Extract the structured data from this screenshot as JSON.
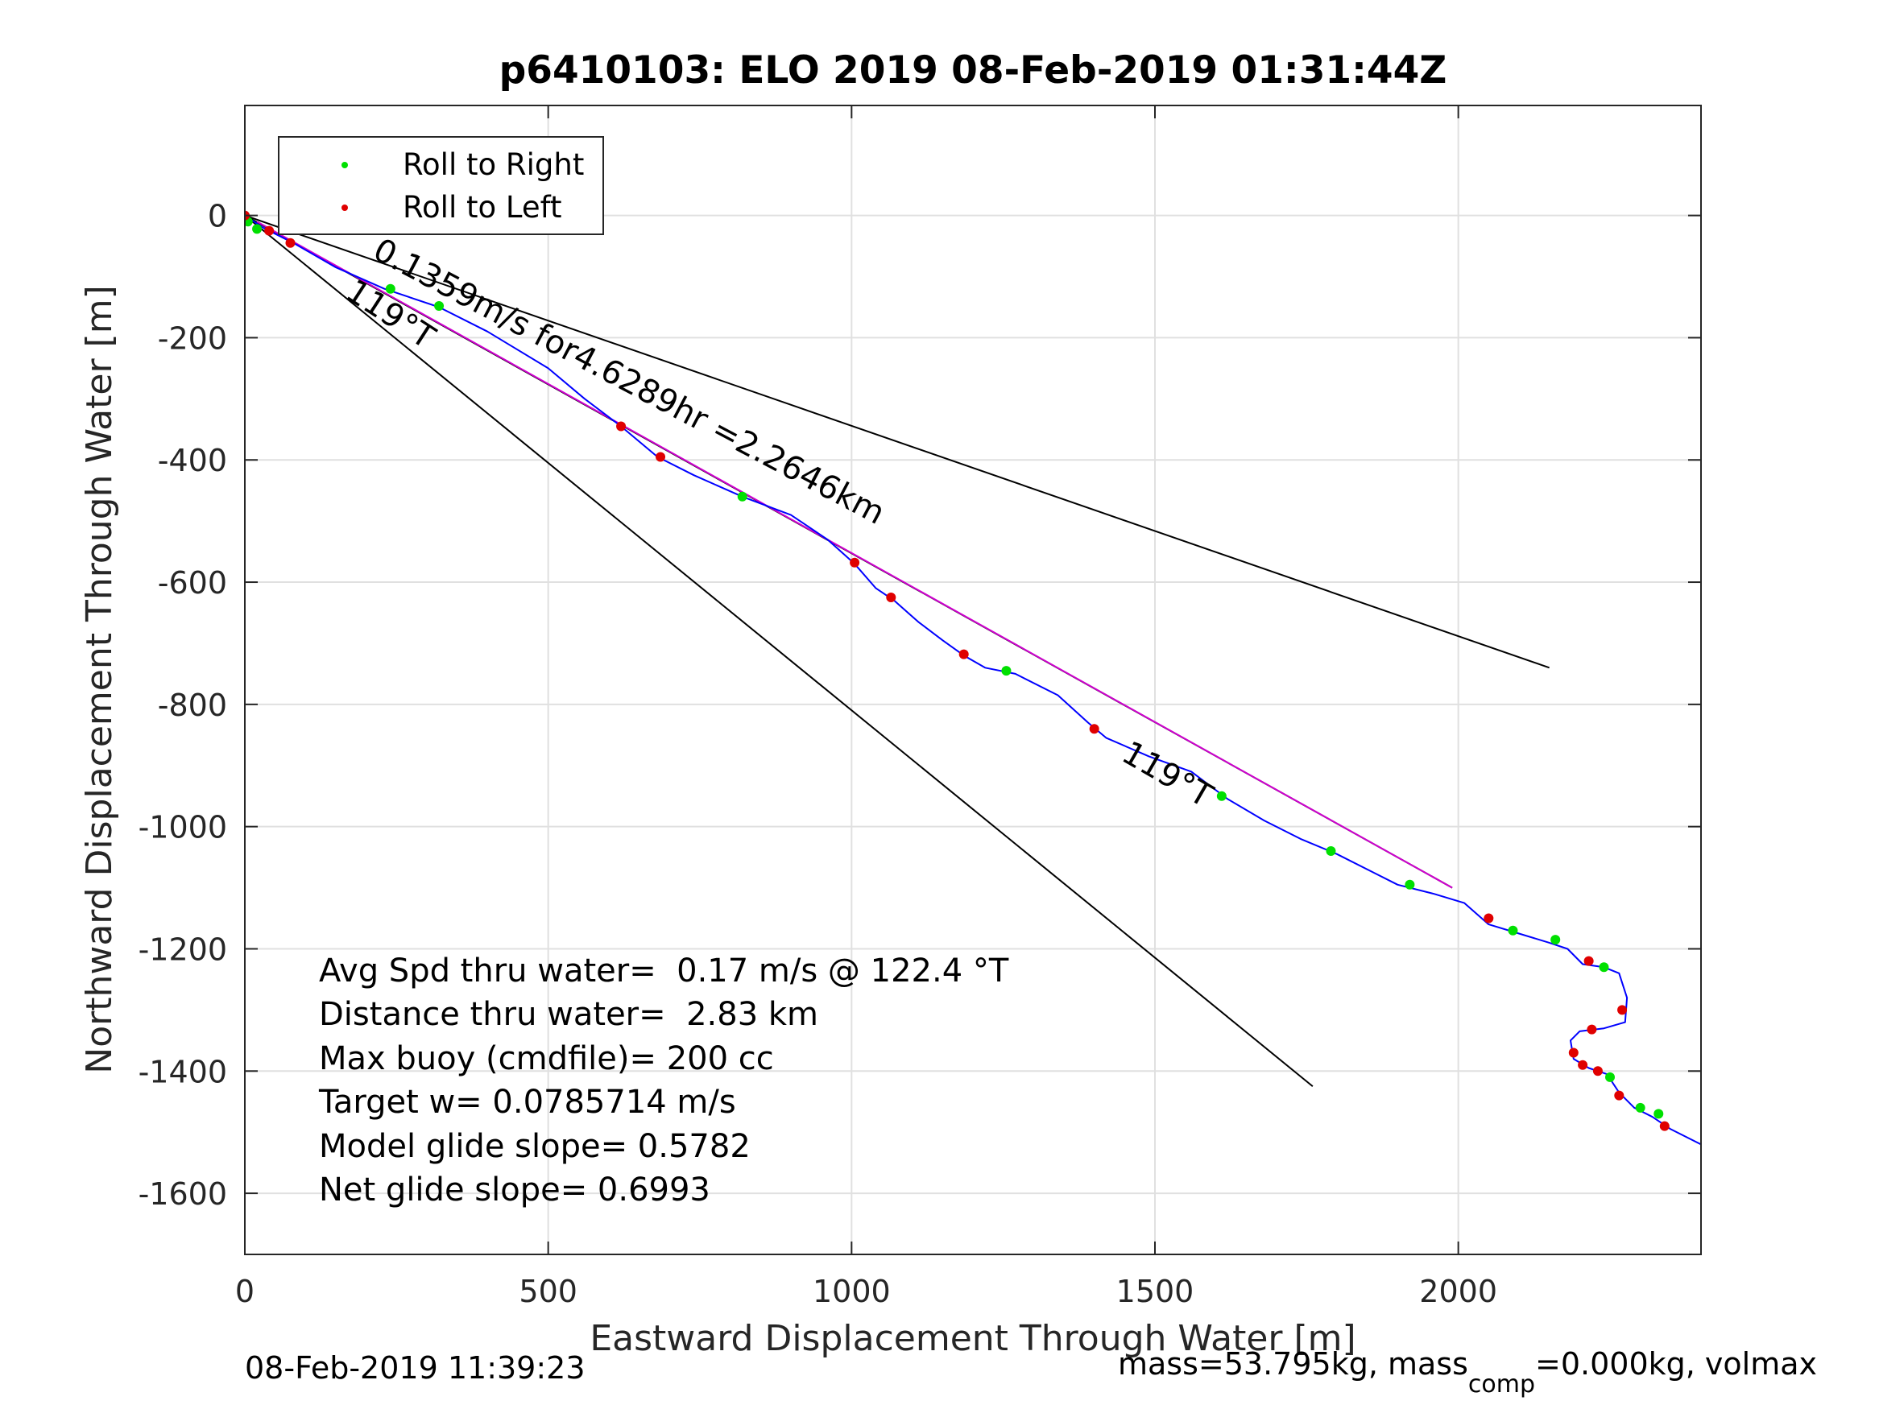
{
  "chart_data": {
    "type": "scatter",
    "title": "p6410103: ELO 2019 08-Feb-2019 01:31:44Z",
    "xlabel": "Eastward Displacement Through Water [m]",
    "ylabel": "Northward Displacement Through Water [m]",
    "xlim": [
      0,
      2400
    ],
    "ylim": [
      -1700,
      180
    ],
    "grid": true,
    "xticks": [
      0,
      500,
      1000,
      1500,
      2000
    ],
    "xtick_labels": [
      "0",
      "500",
      "1000",
      "1500",
      "2000"
    ],
    "yticks": [
      0,
      -200,
      -400,
      -600,
      -800,
      -1000,
      -1200,
      -1400,
      -1600
    ],
    "ytick_labels": [
      "0",
      "-200",
      "-400",
      "-600",
      "-800",
      "-1000",
      "-1200",
      "-1400",
      "-1600"
    ],
    "legend": {
      "location": "top-left",
      "entries": [
        {
          "label": "Roll to Right",
          "color": "#00e000"
        },
        {
          "label": "Roll to Left",
          "color": "#e00000"
        }
      ]
    },
    "track": {
      "color": "#0000ff",
      "points": [
        [
          0,
          0
        ],
        [
          30,
          -20
        ],
        [
          80,
          -45
        ],
        [
          150,
          -85
        ],
        [
          230,
          -120
        ],
        [
          320,
          -150
        ],
        [
          400,
          -190
        ],
        [
          500,
          -250
        ],
        [
          560,
          -300
        ],
        [
          620,
          -345
        ],
        [
          680,
          -395
        ],
        [
          740,
          -425
        ],
        [
          820,
          -460
        ],
        [
          900,
          -490
        ],
        [
          960,
          -530
        ],
        [
          1005,
          -570
        ],
        [
          1040,
          -610
        ],
        [
          1070,
          -630
        ],
        [
          1110,
          -665
        ],
        [
          1150,
          -695
        ],
        [
          1185,
          -720
        ],
        [
          1220,
          -740
        ],
        [
          1270,
          -750
        ],
        [
          1340,
          -785
        ],
        [
          1390,
          -830
        ],
        [
          1420,
          -855
        ],
        [
          1490,
          -885
        ],
        [
          1560,
          -910
        ],
        [
          1620,
          -955
        ],
        [
          1680,
          -990
        ],
        [
          1740,
          -1020
        ],
        [
          1800,
          -1045
        ],
        [
          1860,
          -1075
        ],
        [
          1900,
          -1095
        ],
        [
          1960,
          -1110
        ],
        [
          2010,
          -1125
        ],
        [
          2050,
          -1160
        ],
        [
          2100,
          -1175
        ],
        [
          2150,
          -1190
        ],
        [
          2180,
          -1200
        ],
        [
          2205,
          -1225
        ],
        [
          2240,
          -1230
        ],
        [
          2265,
          -1240
        ],
        [
          2278,
          -1280
        ],
        [
          2275,
          -1320
        ],
        [
          2240,
          -1330
        ],
        [
          2200,
          -1335
        ],
        [
          2185,
          -1350
        ],
        [
          2190,
          -1380
        ],
        [
          2215,
          -1395
        ],
        [
          2245,
          -1405
        ],
        [
          2265,
          -1435
        ],
        [
          2290,
          -1460
        ],
        [
          2320,
          -1475
        ],
        [
          2350,
          -1495
        ],
        [
          2400,
          -1520
        ]
      ]
    },
    "roll_right": [
      [
        5,
        -10
      ],
      [
        20,
        -22
      ],
      [
        240,
        -120
      ],
      [
        320,
        -148
      ],
      [
        820,
        -460
      ],
      [
        1255,
        -745
      ],
      [
        1610,
        -950
      ],
      [
        1790,
        -1040
      ],
      [
        1920,
        -1095
      ],
      [
        2090,
        -1170
      ],
      [
        2160,
        -1185
      ],
      [
        2240,
        -1230
      ],
      [
        2250,
        -1410
      ],
      [
        2300,
        -1460
      ],
      [
        2330,
        -1470
      ]
    ],
    "roll_left": [
      [
        0,
        0
      ],
      [
        40,
        -25
      ],
      [
        75,
        -45
      ],
      [
        620,
        -345
      ],
      [
        685,
        -395
      ],
      [
        1005,
        -568
      ],
      [
        1065,
        -625
      ],
      [
        1185,
        -718
      ],
      [
        1400,
        -840
      ],
      [
        2050,
        -1150
      ],
      [
        2215,
        -1220
      ],
      [
        2270,
        -1300
      ],
      [
        2220,
        -1332
      ],
      [
        2190,
        -1370
      ],
      [
        2205,
        -1390
      ],
      [
        2230,
        -1400
      ],
      [
        2265,
        -1440
      ],
      [
        2340,
        -1490
      ]
    ],
    "reference_lines": [
      {
        "from": [
          0,
          0
        ],
        "to": [
          2150,
          -740
        ],
        "color": "#000000"
      },
      {
        "from": [
          0,
          0
        ],
        "to": [
          1760,
          -1425
        ],
        "color": "#000000"
      },
      {
        "from": [
          0,
          0
        ],
        "to": [
          1990,
          -1100
        ],
        "color": "#000000"
      },
      {
        "from": [
          20,
          -10
        ],
        "to": [
          1990,
          -1100
        ],
        "color": "#d000d0"
      }
    ],
    "annotations": [
      {
        "text": "0.1359m/s for4.6289hr =2.2646km",
        "x": 208,
        "y": -68,
        "angle_deg": 27.9
      },
      {
        "text": "119°T",
        "x": 163,
        "y": -133,
        "angle_deg": 33
      },
      {
        "text": "119°T",
        "x": 1442,
        "y": -890,
        "angle_deg": 30
      }
    ],
    "stats_text": [
      "Avg Spd thru water=  0.17 m/s @ 122.4 °T",
      "Distance thru water=  2.83 km",
      "Max buoy (cmdfile)= 200 cc",
      "Target w= 0.0785714 m/s",
      "Model glide slope= 0.5782",
      "Net glide slope= 0.6993"
    ]
  },
  "footer": {
    "timestamp": "08-Feb-2019 11:39:23",
    "mass_text_1": "mass=53.795kg, mass",
    "mass_sub": "comp",
    "mass_text_2": "=0.000kg, volmax"
  }
}
